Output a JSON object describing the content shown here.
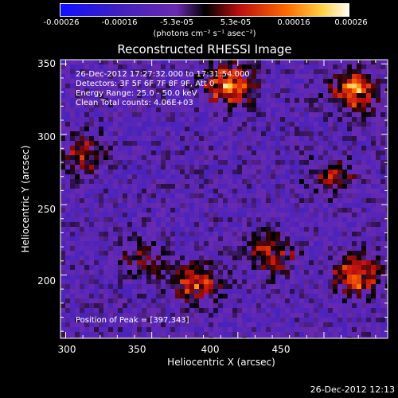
{
  "colorbar": {
    "tick_labels": [
      "-0.00026",
      "-0.00016",
      "-5.3e-05",
      "5.3e-05",
      "0.00016",
      "0.00026"
    ],
    "tick_values": [
      -0.00026,
      -0.00016,
      -5.3e-05,
      5.3e-05,
      0.00016,
      0.00026
    ],
    "units": "(photons cm⁻² s⁻¹ asec⁻²)",
    "range": [
      -0.00026,
      0.00026
    ]
  },
  "chart_data": {
    "type": "heatmap",
    "title": "Reconstructed RHESSI Image",
    "xlabel": "Heliocentric X (arcsec)",
    "ylabel": "Heliocentric Y (arcsec)",
    "xlim": [
      297,
      487
    ],
    "ylim": [
      155,
      353
    ],
    "x_ticks": [
      300,
      350,
      400,
      450
    ],
    "y_ticks": [
      200,
      250,
      300,
      350
    ],
    "annotations": [
      "26-Dec-2012 17:27:32.000 to 17:31:54.000",
      "Detectors: 3F 5F 6F 7F 8F 9F, Att 0",
      "Energy Range: 25.0 - 50.0 keV",
      "Clean     Total counts: 4.06E+03"
    ],
    "peak_label": "Position of Peak = [397,343]",
    "peak_position": [
      397,
      343
    ],
    "bright_sources": [
      {
        "x": 395,
        "y": 335,
        "intensity": 0.00026
      },
      {
        "x": 468,
        "y": 330,
        "intensity": 0.00024
      },
      {
        "x": 375,
        "y": 195,
        "intensity": 0.0002
      },
      {
        "x": 470,
        "y": 200,
        "intensity": 0.00022
      },
      {
        "x": 310,
        "y": 285,
        "intensity": 0.00014
      },
      {
        "x": 420,
        "y": 215,
        "intensity": 0.00016
      },
      {
        "x": 345,
        "y": 210,
        "intensity": 0.0001
      },
      {
        "x": 455,
        "y": 270,
        "intensity": 0.00012
      }
    ]
  },
  "footer": {
    "timestamp": "26-Dec-2012 12:13"
  }
}
